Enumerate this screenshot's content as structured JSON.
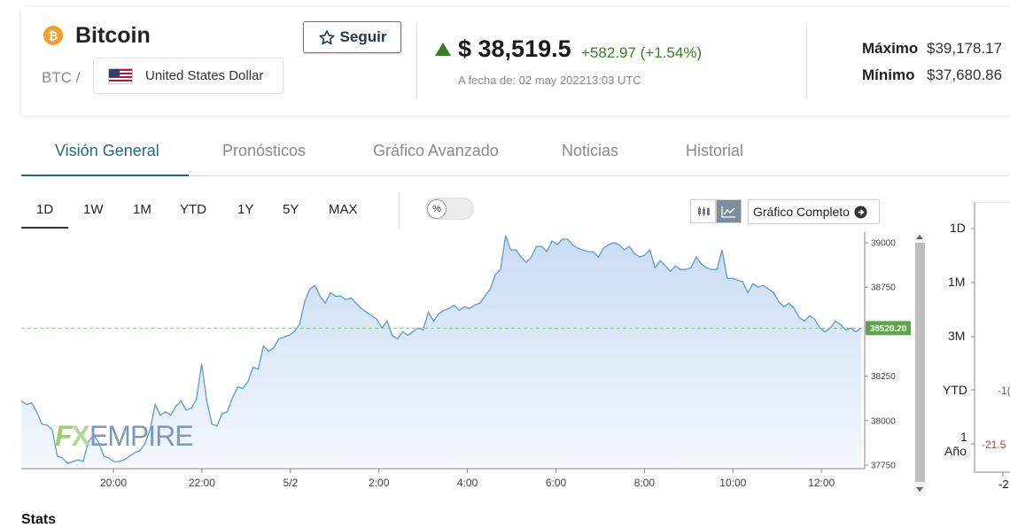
{
  "header": {
    "coin_icon": "bitcoin-icon",
    "coin_icon_glyph": "₿",
    "name": "Bitcoin",
    "symbol": "BTC",
    "separator": "/",
    "currency": "United States Dollar",
    "follow_label": "Seguir",
    "price": "$ 38,519.5",
    "change": "+582.97 (+1.54%)",
    "timestamp": "A fecha de: 02 may 202213:03 UTC",
    "max_label": "Máximo",
    "max_value": "$39,178.17",
    "min_label": "Mínimo",
    "min_value": "$37,680.86",
    "up_color": "#3b7d24"
  },
  "tabs": [
    "Visión General",
    "Pronósticos",
    "Gráfico Avanzado",
    "Noticias",
    "Historial"
  ],
  "active_tab": 0,
  "ranges": [
    "1D",
    "1W",
    "1M",
    "YTD",
    "1Y",
    "5Y",
    "MAX"
  ],
  "active_range": 0,
  "toggle_label": "%",
  "full_chart_label": "Gráfico Completo",
  "watermark": {
    "a": "F",
    "b": "X",
    "c": "EMPIRE"
  },
  "mini_chart": {
    "labels": [
      "1D",
      "1M",
      "3M",
      "YTD",
      "1",
      "Año"
    ],
    "neg_values": [
      "-1(",
      "-21.5"
    ],
    "bottom_tick": "-2"
  },
  "stats_title": "Stats",
  "chart_data": {
    "type": "area",
    "title": "",
    "xlabel": "",
    "ylabel": "",
    "x_ticks": [
      "20:00",
      "22:00",
      "5/2",
      "2:00",
      "4:00",
      "6:00",
      "8:00",
      "10:00",
      "12:00"
    ],
    "y_ticks": [
      37750,
      38000,
      38250,
      38750,
      39000
    ],
    "ylim": [
      37730,
      39060
    ],
    "current_value_label": "38520.20",
    "current_value": 38520.2,
    "grid": false,
    "line_color": "#5b9bd5",
    "fill_color": "#dbe8f7",
    "series": [
      {
        "values": [
          38110,
          38090,
          38100,
          38050,
          37980,
          37975,
          37950,
          37800,
          37790,
          37760,
          37770,
          37780,
          37770,
          37880,
          37920,
          37880,
          37800,
          37790,
          37770,
          37770,
          37780,
          37800,
          37820,
          37830,
          37870,
          37950,
          38090,
          38030,
          38050,
          38030,
          38080,
          38110,
          38060,
          38070,
          38120,
          38320,
          38110,
          37980,
          37970,
          38040,
          38050,
          38130,
          38190,
          38180,
          38220,
          38300,
          38290,
          38420,
          38390,
          38410,
          38460,
          38470,
          38480,
          38500,
          38540,
          38670,
          38740,
          38760,
          38700,
          38660,
          38720,
          38700,
          38700,
          38680,
          38690,
          38660,
          38630,
          38610,
          38590,
          38570,
          38520,
          38560,
          38480,
          38460,
          38500,
          38480,
          38500,
          38520,
          38510,
          38610,
          38560,
          38600,
          38620,
          38630,
          38650,
          38620,
          38640,
          38630,
          38650,
          38660,
          38700,
          38740,
          38820,
          38850,
          39040,
          38960,
          38960,
          38920,
          38890,
          38920,
          38980,
          38980,
          38950,
          39010,
          38990,
          39020,
          39020,
          38990,
          38970,
          38960,
          38950,
          38950,
          38920,
          38970,
          38990,
          39000,
          38990,
          38960,
          38980,
          38940,
          38920,
          38930,
          38960,
          38860,
          38900,
          38870,
          38840,
          38870,
          38850,
          38850,
          38860,
          38920,
          38880,
          38860,
          38850,
          38850,
          38960,
          38800,
          38800,
          38790,
          38780,
          38720,
          38770,
          38750,
          38760,
          38740,
          38720,
          38670,
          38640,
          38660,
          38630,
          38580,
          38560,
          38590,
          38570,
          38520,
          38500,
          38520,
          38560,
          38540,
          38510,
          38520,
          38500,
          38520
        ]
      }
    ]
  }
}
